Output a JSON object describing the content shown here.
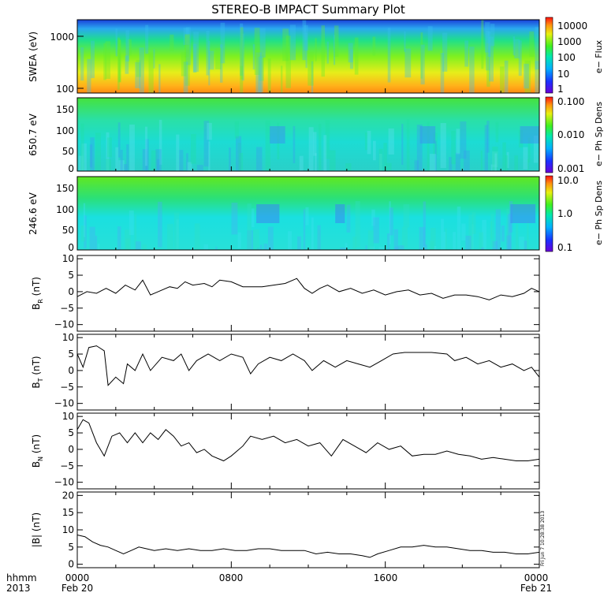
{
  "chart_data": {
    "type": "line",
    "title": "STEREO-B IMPACT Summary Plot",
    "x_axis": {
      "corner_label_1": "hhmm",
      "corner_label_2": "2013",
      "range_hours": [
        0,
        24
      ],
      "ticks": [
        {
          "hour": 0,
          "label": "0000",
          "date": "Feb 20"
        },
        {
          "hour": 8,
          "label": "0800",
          "date": ""
        },
        {
          "hour": 16,
          "label": "1600",
          "date": ""
        },
        {
          "hour": 24,
          "label": "0000",
          "date": "Feb 21"
        }
      ]
    },
    "timestamp": "Fri Jun  7 10:28:38 2013",
    "spectrograms": [
      {
        "name": "swea",
        "ylabel": "SWEA (eV)",
        "y_ticks": [
          "1000",
          "100"
        ],
        "y_scale": "log",
        "colorbar_label": "e− Flux",
        "colorbar_ticks": [
          "10000",
          "1000",
          "100",
          "10",
          "1"
        ],
        "colorbar_scale": "log"
      },
      {
        "name": "pad650",
        "ylabel": "650.7 eV",
        "y_ticks": [
          "150",
          "100",
          "50",
          "0"
        ],
        "y_range": [
          0,
          180
        ],
        "colorbar_label": "e− Ph Sp Dens",
        "colorbar_ticks": [
          "0.100",
          "0.010",
          "0.001"
        ],
        "colorbar_scale": "log"
      },
      {
        "name": "pad246",
        "ylabel": "246.6 eV",
        "y_ticks": [
          "150",
          "100",
          "50",
          "0"
        ],
        "y_range": [
          0,
          180
        ],
        "colorbar_label": "e− Ph Sp Dens",
        "colorbar_ticks": [
          "10.0",
          "1.0",
          "0.1"
        ],
        "colorbar_scale": "log"
      }
    ],
    "line_panels": [
      {
        "name": "br",
        "ylabel_main": "B",
        "ylabel_sub": "R",
        "ylabel_unit": "(nT)",
        "ylim": [
          -12,
          11
        ],
        "y_ticks": [
          "10",
          "5",
          "0",
          "−5",
          "−10"
        ],
        "points": [
          [
            0,
            -1.5
          ],
          [
            0.5,
            0
          ],
          [
            1,
            -0.5
          ],
          [
            1.5,
            1
          ],
          [
            2,
            -0.5
          ],
          [
            2.5,
            2
          ],
          [
            3,
            0.5
          ],
          [
            3.4,
            3.5
          ],
          [
            3.8,
            -1
          ],
          [
            4.2,
            0
          ],
          [
            4.8,
            1.5
          ],
          [
            5.2,
            1
          ],
          [
            5.6,
            3
          ],
          [
            6,
            2
          ],
          [
            6.6,
            2.5
          ],
          [
            7,
            1.5
          ],
          [
            7.4,
            3.5
          ],
          [
            8,
            3
          ],
          [
            8.6,
            1.5
          ],
          [
            9,
            1.5
          ],
          [
            9.6,
            1.5
          ],
          [
            10.2,
            2
          ],
          [
            10.8,
            2.5
          ],
          [
            11.4,
            4
          ],
          [
            11.8,
            1
          ],
          [
            12.2,
            -0.5
          ],
          [
            12.6,
            1
          ],
          [
            13,
            2
          ],
          [
            13.6,
            0
          ],
          [
            14.2,
            1
          ],
          [
            14.8,
            -0.5
          ],
          [
            15.4,
            0.5
          ],
          [
            16,
            -1
          ],
          [
            16.6,
            0
          ],
          [
            17.2,
            0.5
          ],
          [
            17.8,
            -1
          ],
          [
            18.4,
            -0.5
          ],
          [
            19,
            -2
          ],
          [
            19.6,
            -1
          ],
          [
            20.2,
            -1
          ],
          [
            20.8,
            -1.5
          ],
          [
            21.4,
            -2.5
          ],
          [
            22,
            -1
          ],
          [
            22.6,
            -1.5
          ],
          [
            23.2,
            -0.5
          ],
          [
            23.6,
            1
          ],
          [
            24,
            0
          ]
        ]
      },
      {
        "name": "bt",
        "ylabel_main": "B",
        "ylabel_sub": "T",
        "ylabel_unit": "(nT)",
        "ylim": [
          -12,
          11
        ],
        "y_ticks": [
          "10",
          "5",
          "0",
          "−5",
          "−10"
        ],
        "points": [
          [
            0,
            5
          ],
          [
            0.3,
            1
          ],
          [
            0.6,
            7
          ],
          [
            1,
            7.5
          ],
          [
            1.4,
            6
          ],
          [
            1.6,
            -4.5
          ],
          [
            2,
            -2
          ],
          [
            2.4,
            -4
          ],
          [
            2.6,
            2
          ],
          [
            3,
            0
          ],
          [
            3.4,
            5
          ],
          [
            3.8,
            0
          ],
          [
            4.4,
            4
          ],
          [
            5,
            3
          ],
          [
            5.4,
            5
          ],
          [
            5.8,
            0
          ],
          [
            6.2,
            3
          ],
          [
            6.8,
            5
          ],
          [
            7.4,
            3
          ],
          [
            8,
            5
          ],
          [
            8.6,
            4
          ],
          [
            9,
            -1
          ],
          [
            9.4,
            2
          ],
          [
            10,
            4
          ],
          [
            10.6,
            3
          ],
          [
            11.2,
            5
          ],
          [
            11.8,
            3
          ],
          [
            12.2,
            0
          ],
          [
            12.8,
            3
          ],
          [
            13.4,
            1
          ],
          [
            14,
            3
          ],
          [
            14.6,
            2
          ],
          [
            15.2,
            1
          ],
          [
            15.8,
            3
          ],
          [
            16.4,
            5
          ],
          [
            17,
            5.5
          ],
          [
            17.6,
            5.5
          ],
          [
            18.4,
            5.5
          ],
          [
            19.2,
            5
          ],
          [
            19.6,
            3
          ],
          [
            20.2,
            4
          ],
          [
            20.8,
            2
          ],
          [
            21.4,
            3
          ],
          [
            22,
            1
          ],
          [
            22.6,
            2
          ],
          [
            23.2,
            0
          ],
          [
            23.6,
            1
          ],
          [
            24,
            -2
          ]
        ]
      },
      {
        "name": "bn",
        "ylabel_main": "B",
        "ylabel_sub": "N",
        "ylabel_unit": "(nT)",
        "ylim": [
          -12,
          11
        ],
        "y_ticks": [
          "10",
          "5",
          "0",
          "−5",
          "−10"
        ],
        "points": [
          [
            0,
            6
          ],
          [
            0.3,
            9
          ],
          [
            0.6,
            8
          ],
          [
            1,
            2
          ],
          [
            1.4,
            -2
          ],
          [
            1.8,
            4
          ],
          [
            2.2,
            5
          ],
          [
            2.6,
            2
          ],
          [
            3,
            5
          ],
          [
            3.4,
            2
          ],
          [
            3.8,
            5
          ],
          [
            4.2,
            3
          ],
          [
            4.6,
            6
          ],
          [
            5,
            4
          ],
          [
            5.4,
            1
          ],
          [
            5.8,
            2
          ],
          [
            6.2,
            -1
          ],
          [
            6.6,
            0
          ],
          [
            7,
            -2
          ],
          [
            7.6,
            -3.5
          ],
          [
            8,
            -2
          ],
          [
            8.6,
            1
          ],
          [
            9,
            4
          ],
          [
            9.6,
            3
          ],
          [
            10.2,
            4
          ],
          [
            10.8,
            2
          ],
          [
            11.4,
            3
          ],
          [
            12,
            1
          ],
          [
            12.6,
            2
          ],
          [
            13.2,
            -2
          ],
          [
            13.8,
            3
          ],
          [
            14.4,
            1
          ],
          [
            15,
            -1
          ],
          [
            15.6,
            2
          ],
          [
            16.2,
            0
          ],
          [
            16.8,
            1
          ],
          [
            17.4,
            -2
          ],
          [
            18,
            -1.5
          ],
          [
            18.6,
            -1.5
          ],
          [
            19.2,
            -0.5
          ],
          [
            19.8,
            -1.5
          ],
          [
            20.4,
            -2
          ],
          [
            21,
            -3
          ],
          [
            21.6,
            -2.5
          ],
          [
            22.2,
            -3
          ],
          [
            22.8,
            -3.5
          ],
          [
            23.4,
            -3.5
          ],
          [
            24,
            -3
          ]
        ]
      },
      {
        "name": "bmag",
        "ylabel_main": "|B|",
        "ylabel_sub": "",
        "ylabel_unit": "(nT)",
        "ylim": [
          -1,
          21
        ],
        "y_ticks": [
          "20",
          "15",
          "10",
          "5",
          "0"
        ],
        "points": [
          [
            0,
            8.5
          ],
          [
            0.4,
            8
          ],
          [
            0.8,
            6.5
          ],
          [
            1.2,
            5.5
          ],
          [
            1.6,
            5
          ],
          [
            2,
            4
          ],
          [
            2.4,
            3
          ],
          [
            2.8,
            4
          ],
          [
            3.2,
            5
          ],
          [
            3.6,
            4.5
          ],
          [
            4,
            4
          ],
          [
            4.6,
            4.5
          ],
          [
            5.2,
            4
          ],
          [
            5.8,
            4.5
          ],
          [
            6.4,
            4
          ],
          [
            7,
            4
          ],
          [
            7.6,
            4.5
          ],
          [
            8.2,
            4
          ],
          [
            8.8,
            4
          ],
          [
            9.4,
            4.5
          ],
          [
            10,
            4.5
          ],
          [
            10.6,
            4
          ],
          [
            11.2,
            4
          ],
          [
            11.8,
            4
          ],
          [
            12.4,
            3
          ],
          [
            13,
            3.5
          ],
          [
            13.6,
            3
          ],
          [
            14.2,
            3
          ],
          [
            14.8,
            2.5
          ],
          [
            15.2,
            2
          ],
          [
            15.6,
            3
          ],
          [
            16.2,
            4
          ],
          [
            16.8,
            5
          ],
          [
            17.4,
            5
          ],
          [
            18,
            5.5
          ],
          [
            18.6,
            5
          ],
          [
            19.2,
            5
          ],
          [
            19.8,
            4.5
          ],
          [
            20.4,
            4
          ],
          [
            21,
            4
          ],
          [
            21.6,
            3.5
          ],
          [
            22.2,
            3.5
          ],
          [
            22.8,
            3
          ],
          [
            23.4,
            3
          ],
          [
            24,
            3.5
          ]
        ]
      }
    ]
  }
}
